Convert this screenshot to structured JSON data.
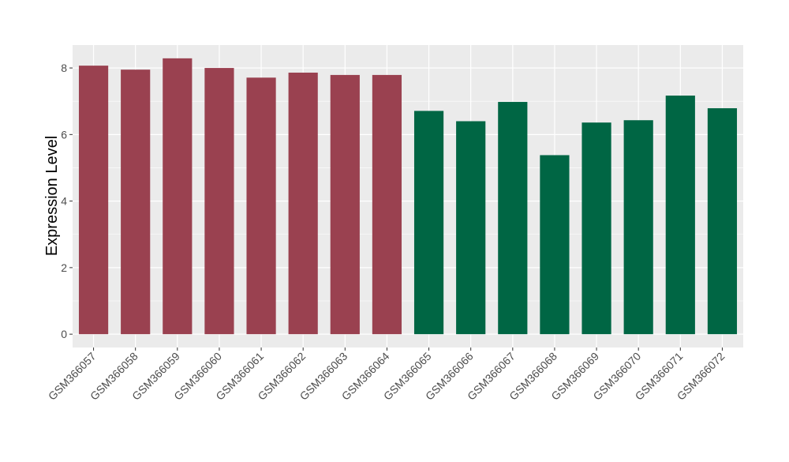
{
  "chart_data": {
    "type": "bar",
    "title": "",
    "xlabel": "",
    "ylabel": "Expression Level",
    "ylim": [
      -0.4,
      8.69
    ],
    "yticks": [
      0,
      2,
      4,
      6,
      8
    ],
    "grid": true,
    "legend": "none",
    "categories": [
      "GSM366057",
      "GSM366058",
      "GSM366059",
      "GSM366060",
      "GSM366061",
      "GSM366062",
      "GSM366063",
      "GSM366064",
      "GSM366065",
      "GSM366066",
      "GSM366067",
      "GSM366068",
      "GSM366069",
      "GSM366070",
      "GSM366071",
      "GSM366072"
    ],
    "values": [
      8.07,
      7.95,
      8.29,
      8.0,
      7.71,
      7.86,
      7.79,
      7.79,
      6.71,
      6.4,
      6.98,
      5.38,
      6.36,
      6.43,
      7.17,
      6.79
    ],
    "groups": [
      0,
      0,
      0,
      0,
      0,
      0,
      0,
      0,
      1,
      1,
      1,
      1,
      1,
      1,
      1,
      1
    ],
    "colors": [
      "#9a4150",
      "#006644"
    ],
    "panel_background": "#ebebeb"
  }
}
